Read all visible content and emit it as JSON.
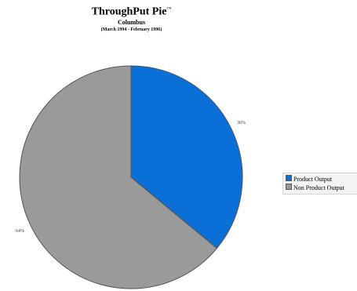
{
  "chart_data": {
    "type": "pie",
    "title": "ThroughPut Pie",
    "title_mark": "™",
    "subtitle": "Columbus",
    "period": "(March 1994 - February 1996)",
    "slices": [
      {
        "name": "Product Output",
        "value": 36,
        "label": "36%",
        "color": "#0a6fd6"
      },
      {
        "name": "Non Product Output",
        "value": 64,
        "label": "64%",
        "color": "#9a9a9a"
      }
    ],
    "legend_placement": "right"
  }
}
